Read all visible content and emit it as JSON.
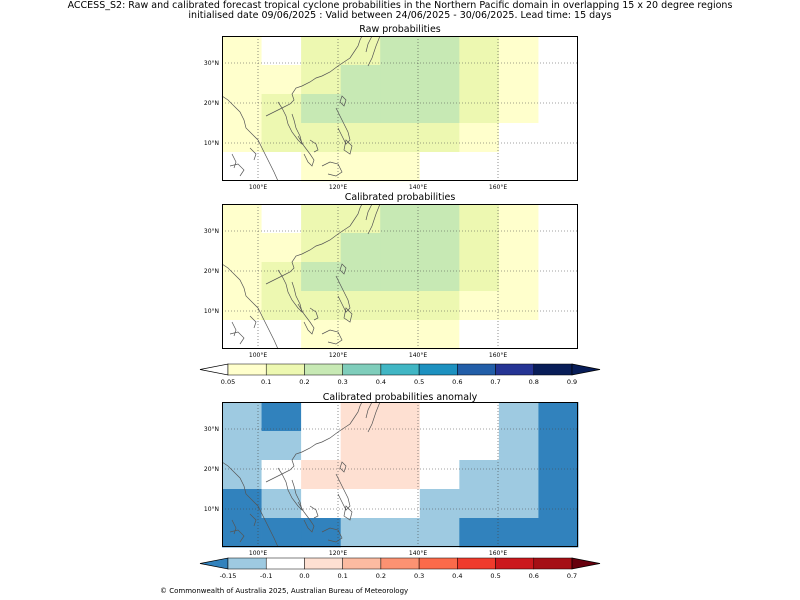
{
  "header": {
    "line1": "ACCESS_S2: Raw and calibrated forecast tropical cyclone probabilities in the Northern Pacific domain in overlapping 15 x 20 degree regions",
    "line2": "initialised date 09/06/2025 :  Valid between 24/06/2025 - 30/06/2025. Lead time: 15 days"
  },
  "axes": {
    "lon_labels": [
      "100°E",
      "120°E",
      "140°E",
      "160°E"
    ],
    "lat_labels": [
      "30°N",
      "20°N",
      "10°N"
    ]
  },
  "panels": [
    {
      "title": "Raw probabilities",
      "rows": [
        [
          "#ffffcc",
          "#ffffff",
          "#edf8b1",
          "#edf8b1",
          "#c7e9b4",
          "#c7e9b4",
          "#edf8b1",
          "#ffffcc",
          "#ffffff"
        ],
        [
          "#ffffcc",
          "#ffffcc",
          "#edf8b1",
          "#c7e9b4",
          "#c7e9b4",
          "#c7e9b4",
          "#edf8b1",
          "#ffffcc",
          "#ffffff"
        ],
        [
          "#ffffcc",
          "#edf8b1",
          "#c7e9b4",
          "#c7e9b4",
          "#c7e9b4",
          "#c7e9b4",
          "#edf8b1",
          "#ffffcc",
          "#ffffff"
        ],
        [
          "#ffffcc",
          "#edf8b1",
          "#edf8b1",
          "#edf8b1",
          "#edf8b1",
          "#edf8b1",
          "#ffffcc",
          "#ffffff",
          "#ffffff"
        ],
        [
          "#ffffff",
          "#ffffff",
          "#ffffcc",
          "#ffffcc",
          "#ffffcc",
          "#ffffff",
          "#ffffff",
          "#ffffff",
          "#ffffff"
        ]
      ]
    },
    {
      "title": "Calibrated probabilities",
      "rows": [
        [
          "#ffffcc",
          "#ffffff",
          "#edf8b1",
          "#edf8b1",
          "#c7e9b4",
          "#c7e9b4",
          "#edf8b1",
          "#ffffcc",
          "#ffffff"
        ],
        [
          "#ffffcc",
          "#ffffcc",
          "#edf8b1",
          "#c7e9b4",
          "#c7e9b4",
          "#c7e9b4",
          "#edf8b1",
          "#ffffcc",
          "#ffffff"
        ],
        [
          "#ffffcc",
          "#edf8b1",
          "#c7e9b4",
          "#c7e9b4",
          "#c7e9b4",
          "#c7e9b4",
          "#edf8b1",
          "#ffffcc",
          "#ffffff"
        ],
        [
          "#ffffcc",
          "#edf8b1",
          "#edf8b1",
          "#edf8b1",
          "#edf8b1",
          "#edf8b1",
          "#ffffcc",
          "#ffffcc",
          "#ffffff"
        ],
        [
          "#ffffff",
          "#ffffff",
          "#ffffcc",
          "#ffffcc",
          "#ffffcc",
          "#ffffcc",
          "#ffffff",
          "#ffffff",
          "#ffffff"
        ]
      ]
    },
    {
      "title": "Calibrated probabilities anomaly",
      "rows": [
        [
          "#9ecae1",
          "#3182bd",
          "#ffffff",
          "#fee0d2",
          "#fee0d2",
          "#ffffff",
          "#ffffff",
          "#9ecae1",
          "#3182bd"
        ],
        [
          "#9ecae1",
          "#9ecae1",
          "#ffffff",
          "#fee0d2",
          "#fee0d2",
          "#ffffff",
          "#ffffff",
          "#9ecae1",
          "#3182bd"
        ],
        [
          "#9ecae1",
          "#ffffff",
          "#fee0d2",
          "#fee0d2",
          "#fee0d2",
          "#ffffff",
          "#9ecae1",
          "#9ecae1",
          "#3182bd"
        ],
        [
          "#3182bd",
          "#9ecae1",
          "#ffffff",
          "#ffffff",
          "#ffffff",
          "#9ecae1",
          "#9ecae1",
          "#9ecae1",
          "#3182bd"
        ],
        [
          "#3182bd",
          "#3182bd",
          "#3182bd",
          "#9ecae1",
          "#9ecae1",
          "#9ecae1",
          "#3182bd",
          "#3182bd",
          "#3182bd"
        ]
      ]
    }
  ],
  "colorbar_prob": {
    "labels": [
      "0.05",
      "0.1",
      "0.2",
      "0.3",
      "0.4",
      "0.5",
      "0.6",
      "0.7",
      "0.8",
      "0.9"
    ],
    "colors": [
      "#ffffcc",
      "#edf8b1",
      "#c7e9b4",
      "#7fcdbb",
      "#41b6c4",
      "#1d91c0",
      "#225ea8",
      "#253494",
      "#081d58"
    ],
    "under": "#ffffff",
    "over": "#081d58"
  },
  "colorbar_anom": {
    "labels": [
      "-0.15",
      "-0.1",
      "0.0",
      "0.1",
      "0.2",
      "0.3",
      "0.4",
      "0.5",
      "0.6",
      "0.7"
    ],
    "colors": [
      "#9ecae1",
      "#ffffff",
      "#fee0d2",
      "#fcbba1",
      "#fc9272",
      "#fb6a4a",
      "#ef3b2c",
      "#cb181d",
      "#a50f15"
    ],
    "under": "#3182bd",
    "over": "#67000d"
  },
  "footer": "© Commonwealth of Australia 2025, Australian Bureau of Meteorology"
}
